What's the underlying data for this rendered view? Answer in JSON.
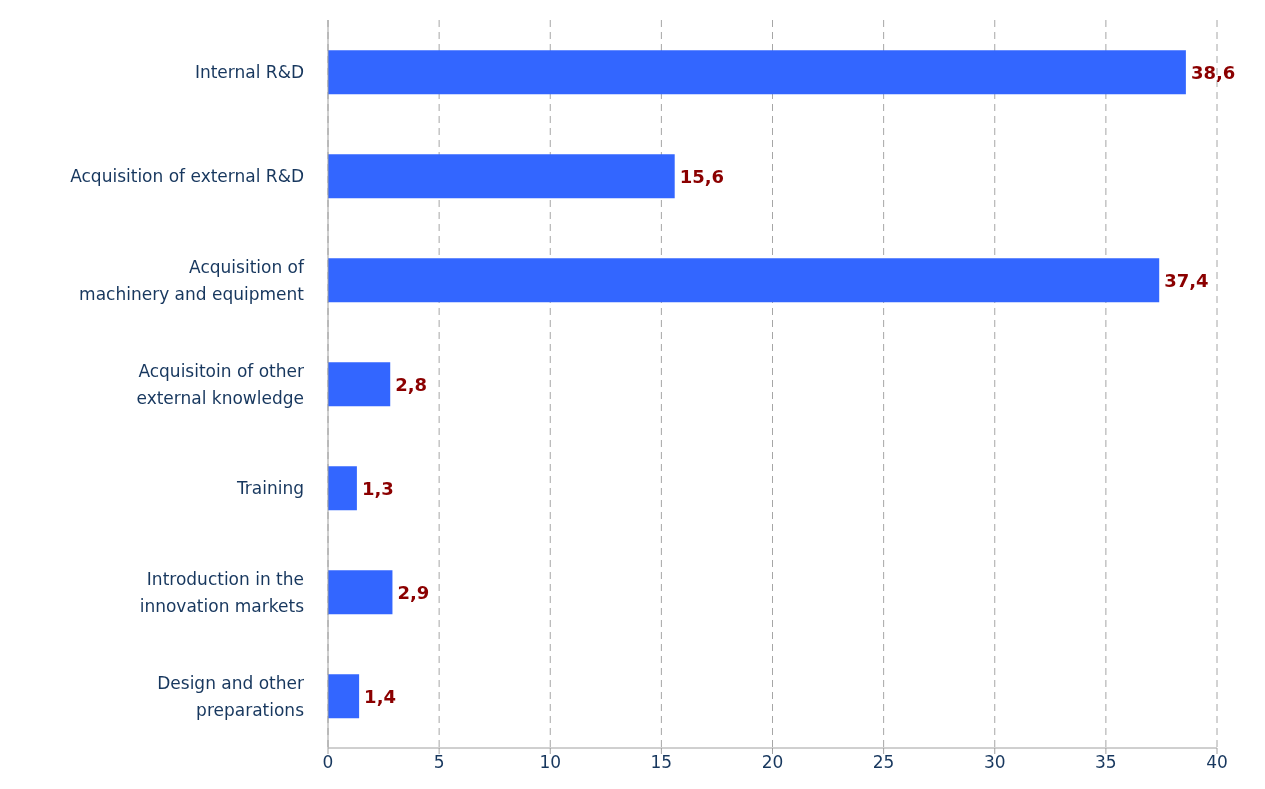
{
  "chart_data": {
    "type": "bar",
    "orientation": "horizontal",
    "categories": [
      "Internal R&D",
      "Acquisition of external R&D",
      "Acquisition of machinery and equipment",
      "Acquisitoin of other external knowledge",
      "Training",
      "Introduction in the innovation markets",
      "Design and other preparations"
    ],
    "values": [
      38.6,
      15.6,
      37.4,
      2.8,
      1.3,
      2.9,
      1.4
    ],
    "value_labels": [
      "38,6",
      "15,6",
      "37,4",
      "2,8",
      "1,3",
      "2,9",
      "1,4"
    ],
    "color": "#3366ff",
    "xlim": [
      0,
      40
    ],
    "xticks": [
      0,
      5,
      10,
      15,
      20,
      25,
      30,
      35,
      40
    ],
    "grid": "x"
  }
}
